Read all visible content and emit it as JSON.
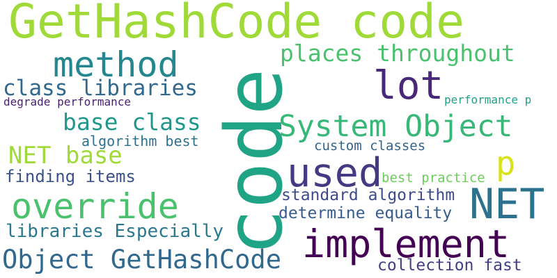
{
  "words": [
    {
      "text": "GetHashCode code",
      "color": "#a0da39"
    },
    {
      "text": "code",
      "color": "#20a486"
    },
    {
      "text": "method",
      "color": "#24868e"
    },
    {
      "text": "places throughout",
      "color": "#4ac16d"
    },
    {
      "text": "lot",
      "color": "#482878"
    },
    {
      "text": "class libraries",
      "color": "#31688e"
    },
    {
      "text": "degrade performance",
      "color": "#481f70"
    },
    {
      "text": "performance p",
      "color": "#1fa187"
    },
    {
      "text": "base class",
      "color": "#1f988b"
    },
    {
      "text": "System Object",
      "color": "#37b878"
    },
    {
      "text": "NET base",
      "color": "#a0da39"
    },
    {
      "text": "algorithm best",
      "color": "#2c728e"
    },
    {
      "text": "custom classes",
      "color": "#33638d"
    },
    {
      "text": "p",
      "color": "#d7e219"
    },
    {
      "text": "used",
      "color": "#443983"
    },
    {
      "text": "finding items",
      "color": "#3b528b"
    },
    {
      "text": "best practice",
      "color": "#6ccd5a"
    },
    {
      "text": "override",
      "color": "#4ac16d"
    },
    {
      "text": "standard algorithm",
      "color": "#3e4a89"
    },
    {
      "text": "NET",
      "color": "#2c728e"
    },
    {
      "text": "determine equality",
      "color": "#365c8d"
    },
    {
      "text": "libraries Especially",
      "color": "#2a788e"
    },
    {
      "text": "implement",
      "color": "#440154"
    },
    {
      "text": "Object GetHashCode",
      "color": "#31688e"
    },
    {
      "text": "collection fast",
      "color": "#433e85"
    }
  ]
}
